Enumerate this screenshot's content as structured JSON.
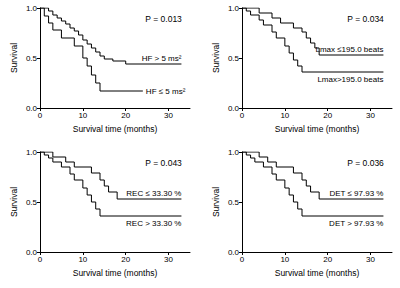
{
  "chart_data": [
    {
      "type": "line",
      "annotation": "P = 0.013",
      "xlabel": "Survival time (months)",
      "ylabel": "Survival",
      "xlim": [
        0,
        35
      ],
      "xticks": [
        0,
        10,
        20,
        30
      ],
      "ylim": [
        0,
        1
      ],
      "yticks": [
        {
          "value": 0,
          "label": "0.0"
        },
        {
          "value": 0.5,
          "label": "0.5"
        },
        {
          "value": 1,
          "label": "1.0"
        }
      ],
      "grid": false,
      "line_style": "step",
      "marker": "none",
      "series": [
        {
          "name": "HF > 5 ms²",
          "color": "#000000",
          "x": [
            0,
            2,
            3,
            4,
            5,
            6,
            7,
            8,
            9,
            10,
            11,
            12,
            13,
            14,
            15,
            17,
            20,
            33
          ],
          "values": [
            1,
            0.97,
            0.93,
            0.9,
            0.87,
            0.84,
            0.8,
            0.77,
            0.73,
            0.68,
            0.64,
            0.6,
            0.56,
            0.52,
            0.49,
            0.47,
            0.44,
            0.44
          ]
        },
        {
          "name": "HF ≤ 5 ms²",
          "color": "#000000",
          "x": [
            0,
            1,
            2,
            3,
            5,
            8,
            10,
            11,
            12,
            13,
            14,
            24
          ],
          "values": [
            1,
            0.92,
            0.85,
            0.78,
            0.7,
            0.62,
            0.5,
            0.42,
            0.33,
            0.25,
            0.17,
            0.17
          ]
        }
      ]
    },
    {
      "type": "line",
      "annotation": "P = 0.034",
      "xlabel": "Survival time (months)",
      "ylabel": "Survival",
      "xlim": [
        0,
        35
      ],
      "xticks": [
        0,
        10,
        20,
        30
      ],
      "ylim": [
        0,
        1
      ],
      "yticks": [
        {
          "value": 0,
          "label": "0.0"
        },
        {
          "value": 0.5,
          "label": "0.5"
        },
        {
          "value": 1,
          "label": "1.0"
        }
      ],
      "grid": false,
      "line_style": "step",
      "marker": "none",
      "series": [
        {
          "name": "Lmax ≤195.0 beats",
          "color": "#000000",
          "x": [
            0,
            4,
            7,
            9,
            12,
            14,
            15,
            16,
            17,
            18,
            33
          ],
          "values": [
            1,
            0.95,
            0.9,
            0.85,
            0.8,
            0.76,
            0.7,
            0.65,
            0.6,
            0.53,
            0.53
          ]
        },
        {
          "name": "Lmax>195.0 beats",
          "color": "#000000",
          "x": [
            0,
            1,
            2,
            4,
            5,
            7,
            8,
            10,
            11,
            12,
            13,
            14,
            33
          ],
          "values": [
            1,
            0.97,
            0.93,
            0.88,
            0.83,
            0.76,
            0.7,
            0.62,
            0.55,
            0.48,
            0.42,
            0.36,
            0.36
          ]
        }
      ]
    },
    {
      "type": "line",
      "annotation": "P = 0.043",
      "xlabel": "Survival time (months)",
      "ylabel": "Survival",
      "xlim": [
        0,
        35
      ],
      "xticks": [
        0,
        10,
        20,
        30
      ],
      "ylim": [
        0,
        1
      ],
      "yticks": [
        {
          "value": 0,
          "label": "0.0"
        },
        {
          "value": 0.5,
          "label": "0.5"
        },
        {
          "value": 1,
          "label": "1.0"
        }
      ],
      "grid": false,
      "line_style": "step",
      "marker": "none",
      "series": [
        {
          "name": "REC ≤ 33.30 %",
          "color": "#000000",
          "x": [
            0,
            3,
            6,
            8,
            12,
            14,
            15,
            16,
            18,
            33
          ],
          "values": [
            1,
            0.95,
            0.9,
            0.85,
            0.79,
            0.72,
            0.66,
            0.6,
            0.53,
            0.53
          ]
        },
        {
          "name": "REC > 33.30 %",
          "color": "#000000",
          "x": [
            0,
            1,
            2,
            3,
            5,
            7,
            8,
            10,
            11,
            12,
            13,
            14,
            33
          ],
          "values": [
            1,
            0.97,
            0.94,
            0.9,
            0.85,
            0.78,
            0.72,
            0.64,
            0.57,
            0.5,
            0.43,
            0.36,
            0.36
          ]
        }
      ]
    },
    {
      "type": "line",
      "annotation": "P = 0.036",
      "xlabel": "Survival time (months)",
      "ylabel": "Survival",
      "xlim": [
        0,
        35
      ],
      "xticks": [
        0,
        10,
        20,
        30
      ],
      "ylim": [
        0,
        1
      ],
      "yticks": [
        {
          "value": 0,
          "label": "0.0"
        },
        {
          "value": 0.5,
          "label": "0.5"
        },
        {
          "value": 1,
          "label": "1.0"
        }
      ],
      "grid": false,
      "line_style": "step",
      "marker": "none",
      "series": [
        {
          "name": "DET ≤ 97.93 %",
          "color": "#000000",
          "x": [
            0,
            4,
            6,
            8,
            12,
            14,
            15,
            16,
            18,
            33
          ],
          "values": [
            1,
            0.95,
            0.9,
            0.85,
            0.79,
            0.72,
            0.66,
            0.6,
            0.53,
            0.53
          ]
        },
        {
          "name": "DET > 97.93 %",
          "color": "#000000",
          "x": [
            0,
            1,
            2,
            3,
            5,
            7,
            8,
            10,
            11,
            12,
            13,
            14,
            33
          ],
          "values": [
            1,
            0.97,
            0.94,
            0.9,
            0.85,
            0.78,
            0.72,
            0.64,
            0.57,
            0.5,
            0.43,
            0.36,
            0.36
          ]
        }
      ]
    }
  ]
}
